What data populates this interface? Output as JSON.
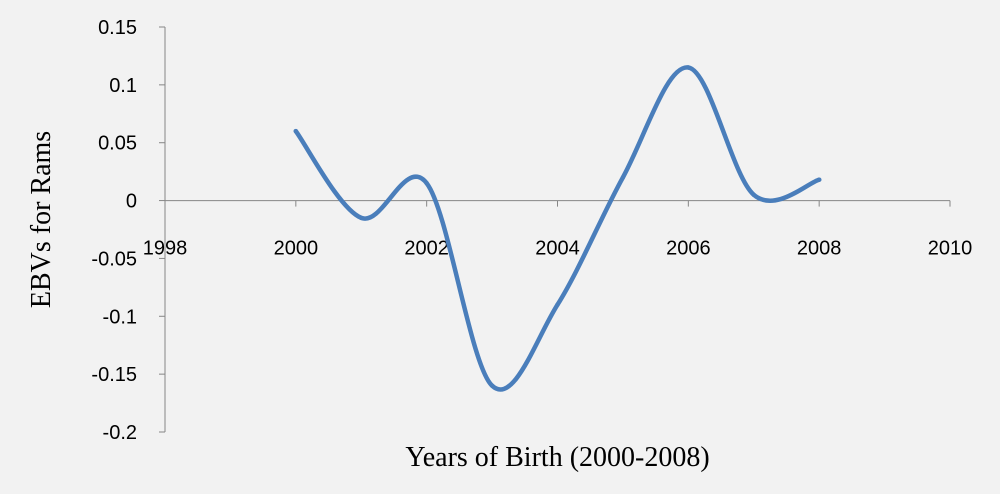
{
  "chart_data": {
    "type": "line",
    "smooth": true,
    "xlabel": "Years of Birth (2000-2008)",
    "ylabel": "EBVs for Rams",
    "xlim": [
      1998,
      2010
    ],
    "ylim": [
      -0.2,
      0.15
    ],
    "x_ticks": [
      1998,
      2000,
      2002,
      2004,
      2006,
      2008,
      2010
    ],
    "y_ticks": [
      0.15,
      0.1,
      0.05,
      0,
      -0.05,
      -0.1,
      -0.15,
      -0.2
    ],
    "y_tick_labels": [
      "0.15",
      "0.1",
      "0.05",
      "0",
      "-0.05",
      "-0.1",
      "-0.15",
      "-0.2"
    ],
    "grid": false,
    "legend": "none",
    "series": [
      {
        "color": "#4a7ebb",
        "x": [
          2000,
          2001,
          2002,
          2003,
          2004,
          2005,
          2006,
          2007,
          2008
        ],
        "y": [
          0.06,
          -0.015,
          0.015,
          -0.16,
          -0.09,
          0.02,
          0.115,
          0.005,
          0.018
        ]
      }
    ]
  }
}
